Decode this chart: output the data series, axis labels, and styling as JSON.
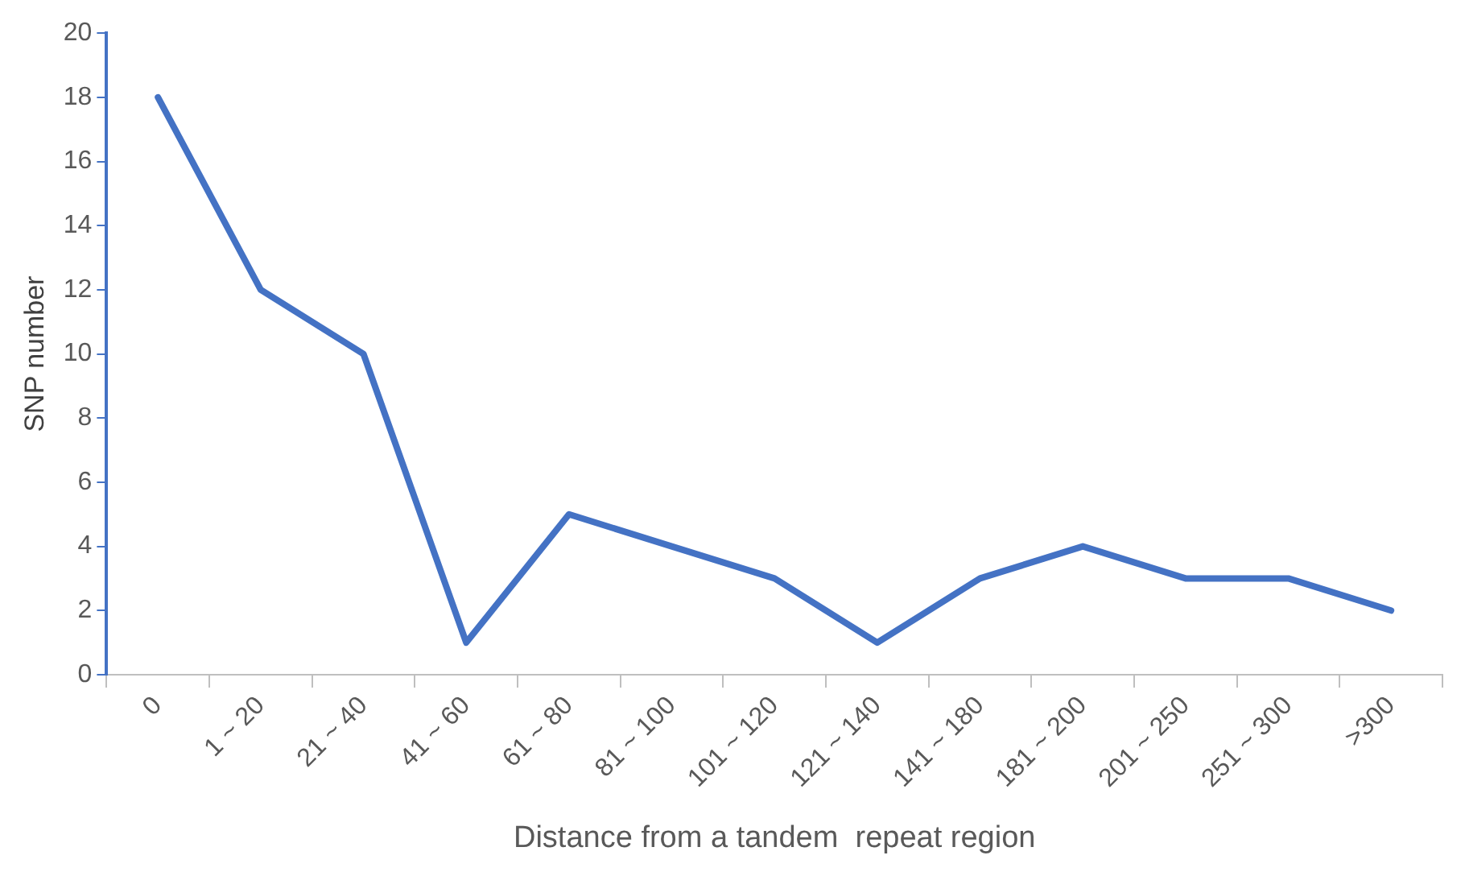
{
  "chart_data": {
    "type": "line",
    "xlabel": "Distance from a tandem  repeat region",
    "ylabel": "SNP number",
    "categories": [
      "0",
      "1 ~ 20",
      "21 ~ 40",
      "41 ~ 60",
      "61 ~ 80",
      "81 ~ 100",
      "101 ~ 120",
      "121 ~ 140",
      "141 ~ 180",
      "181 ~ 200",
      "201 ~ 250",
      "251 ~ 300",
      ">300"
    ],
    "series": [
      {
        "color": "#4472c4",
        "values": [
          18,
          12,
          10,
          1,
          5,
          4,
          3,
          1,
          3,
          4,
          3,
          3,
          2
        ]
      }
    ],
    "ylim": [
      0,
      20
    ],
    "yticks": [
      0,
      2,
      4,
      6,
      8,
      10,
      12,
      14,
      16,
      18,
      20
    ],
    "grid": false,
    "legend": false,
    "marker": "none",
    "line_style": "solid"
  }
}
